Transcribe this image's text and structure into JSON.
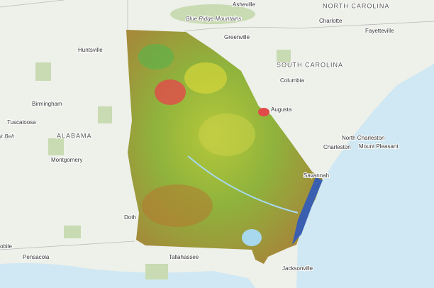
{
  "map": {
    "labels": [
      "Asheville",
      "NORTH CAROLINA",
      "Charlotte",
      "Fayetteville",
      "Blue Ridge Mountains",
      "Greenville",
      "Huntsville",
      "SOUTH CAROLINA",
      "Columbia",
      "Birmingham",
      "Augusta",
      "Tuscaloosa",
      "ALABAMA",
      "k Belt",
      "North Charleston",
      "Charleston",
      "Mount Pleasant",
      "Montgomery",
      "Savannah",
      "Doth",
      "obile",
      "Pensacola",
      "Tallahassee",
      "Jacksonville"
    ]
  }
}
